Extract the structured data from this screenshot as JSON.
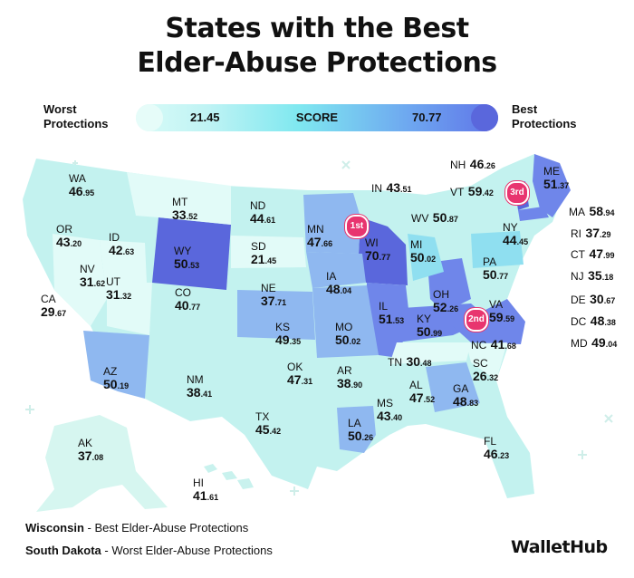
{
  "title_line1": "States with the Best",
  "title_line2": "Elder-Abuse Protections",
  "legend": {
    "worst_label_1": "Worst",
    "worst_label_2": "Protections",
    "best_label_1": "Best",
    "best_label_2": "Protections",
    "min": "21.45",
    "mid": "SCORE",
    "max": "70.77"
  },
  "colors": {
    "low": "#e6fcf9",
    "mid": "#7fe8f0",
    "high": "#5a67dc",
    "badge": "#e8356f"
  },
  "states": [
    {
      "ab": "WA",
      "int": "46",
      "dec": ".95"
    },
    {
      "ab": "OR",
      "int": "43",
      "dec": ".20"
    },
    {
      "ab": "ID",
      "int": "42",
      "dec": ".63"
    },
    {
      "ab": "MT",
      "int": "33",
      "dec": ".52"
    },
    {
      "ab": "WY",
      "int": "50",
      "dec": ".53"
    },
    {
      "ab": "ND",
      "int": "44",
      "dec": ".61"
    },
    {
      "ab": "SD",
      "int": "21",
      "dec": ".45"
    },
    {
      "ab": "NE",
      "int": "37",
      "dec": ".71"
    },
    {
      "ab": "MN",
      "int": "47",
      "dec": ".66"
    },
    {
      "ab": "WI",
      "int": "70",
      "dec": ".77"
    },
    {
      "ab": "IA",
      "int": "48",
      "dec": ".04"
    },
    {
      "ab": "IL",
      "int": "51",
      "dec": ".53"
    },
    {
      "ab": "IN",
      "int": "43",
      "dec": ".51"
    },
    {
      "ab": "MI",
      "int": "50",
      "dec": ".02"
    },
    {
      "ab": "OH",
      "int": "52",
      "dec": ".26"
    },
    {
      "ab": "NV",
      "int": "31",
      "dec": ".62"
    },
    {
      "ab": "UT",
      "int": "31",
      "dec": ".32"
    },
    {
      "ab": "CA",
      "int": "29",
      "dec": ".67"
    },
    {
      "ab": "CO",
      "int": "40",
      "dec": ".77"
    },
    {
      "ab": "KS",
      "int": "49",
      "dec": ".35"
    },
    {
      "ab": "MO",
      "int": "50",
      "dec": ".02"
    },
    {
      "ab": "KY",
      "int": "50",
      "dec": ".99"
    },
    {
      "ab": "WV",
      "int": "50",
      "dec": ".87"
    },
    {
      "ab": "VA",
      "int": "59",
      "dec": ".59"
    },
    {
      "ab": "AZ",
      "int": "50",
      "dec": ".19"
    },
    {
      "ab": "NM",
      "int": "38",
      "dec": ".41"
    },
    {
      "ab": "OK",
      "int": "47",
      "dec": ".31"
    },
    {
      "ab": "AR",
      "int": "38",
      "dec": ".90"
    },
    {
      "ab": "TN",
      "int": "30",
      "dec": ".48"
    },
    {
      "ab": "NC",
      "int": "41",
      "dec": ".68"
    },
    {
      "ab": "SC",
      "int": "26",
      "dec": ".32"
    },
    {
      "ab": "TX",
      "int": "45",
      "dec": ".42"
    },
    {
      "ab": "MS",
      "int": "43",
      "dec": ".40"
    },
    {
      "ab": "AL",
      "int": "47",
      "dec": ".52"
    },
    {
      "ab": "GA",
      "int": "48",
      "dec": ".83"
    },
    {
      "ab": "LA",
      "int": "50",
      "dec": ".26"
    },
    {
      "ab": "FL",
      "int": "46",
      "dec": ".23"
    },
    {
      "ab": "AK",
      "int": "37",
      "dec": ".08"
    },
    {
      "ab": "HI",
      "int": "41",
      "dec": ".61"
    },
    {
      "ab": "NY",
      "int": "44",
      "dec": ".45"
    },
    {
      "ab": "PA",
      "int": "50",
      "dec": ".77"
    },
    {
      "ab": "ME",
      "int": "51",
      "dec": ".37"
    },
    {
      "ab": "NH",
      "int": "46",
      "dec": ".26"
    },
    {
      "ab": "VT",
      "int": "59",
      "dec": ".42"
    },
    {
      "ab": "MA",
      "int": "58",
      "dec": ".94"
    },
    {
      "ab": "RI",
      "int": "37",
      "dec": ".29"
    },
    {
      "ab": "CT",
      "int": "47",
      "dec": ".99"
    },
    {
      "ab": "NJ",
      "int": "35",
      "dec": ".18"
    },
    {
      "ab": "DE",
      "int": "30",
      "dec": ".67"
    },
    {
      "ab": "DC",
      "int": "48",
      "dec": ".38"
    },
    {
      "ab": "MD",
      "int": "49",
      "dec": ".04"
    }
  ],
  "badges": {
    "first": "1st",
    "second": "2nd",
    "third": "3rd"
  },
  "footer": {
    "best_state": "Wisconsin",
    "best_text": " - Best Elder-Abuse Protections",
    "worst_state": "South Dakota",
    "worst_text": " - Worst Elder-Abuse Protections"
  },
  "brand": "WalletHub"
}
